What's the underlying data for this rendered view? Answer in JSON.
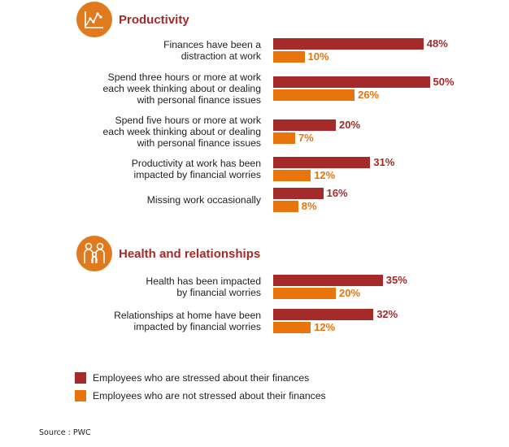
{
  "chart_data": {
    "type": "bar",
    "orientation": "horizontal",
    "value_suffix": "%",
    "series": [
      {
        "name": "Employees who are stressed about their finances",
        "color": "#a52a2a"
      },
      {
        "name": "Employees who are not stressed about their finances",
        "color": "#e8740c"
      }
    ],
    "sections": [
      {
        "title": "Productivity",
        "icon": "line-chart-icon",
        "rows": [
          {
            "label_lines": [
              "Finances have been a",
              "distraction at work"
            ],
            "values": [
              48,
              10
            ],
            "value_labels": [
              "48%",
              "10%"
            ]
          },
          {
            "label_lines": [
              "Spend three hours or more at work",
              "each week thinking about or dealing",
              "with personal finance issues"
            ],
            "values": [
              50,
              26
            ],
            "value_labels": [
              "50%",
              "26%"
            ]
          },
          {
            "label_lines": [
              "Spend five hours or more at work",
              "each week thinking about or dealing",
              "with personal finance issues"
            ],
            "values": [
              20,
              7
            ],
            "value_labels": [
              "20%",
              "7%"
            ]
          },
          {
            "label_lines": [
              "Productivity at work has been",
              "impacted by financial worries"
            ],
            "values": [
              31,
              12
            ],
            "value_labels": [
              "31%",
              "12%"
            ]
          },
          {
            "label_lines": [
              "Missing work occasionally"
            ],
            "values": [
              16,
              8
            ],
            "value_labels": [
              "16%",
              "8%"
            ]
          }
        ]
      },
      {
        "title": "Health and relationships",
        "icon": "family-icon",
        "rows": [
          {
            "label_lines": [
              "Health has been impacted",
              "by financial worries"
            ],
            "values": [
              35,
              20
            ],
            "value_labels": [
              "35%",
              "20%"
            ]
          },
          {
            "label_lines": [
              "Relationships at home have been",
              "impacted by financial worries"
            ],
            "values": [
              32,
              12
            ],
            "value_labels": [
              "32%",
              "12%"
            ]
          }
        ]
      }
    ],
    "legend": [
      "Employees who are stressed about their finances",
      "Employees who are not stressed about their finances"
    ],
    "legend_position": "bottom"
  },
  "colors": {
    "stressed": "#a52a2a",
    "not_stressed": "#e8740c",
    "icon_bg": "#e07a1f"
  },
  "source": "Source : PWC"
}
